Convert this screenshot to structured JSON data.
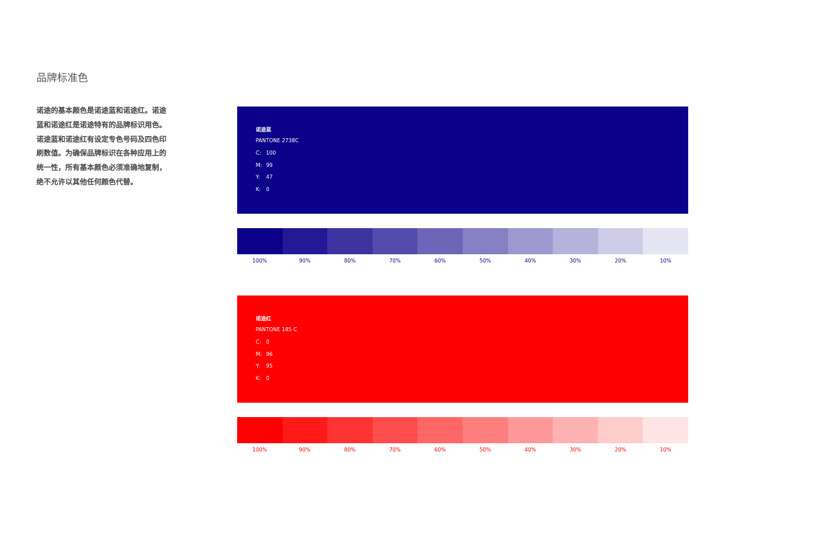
{
  "header": {
    "title": "品牌标准色"
  },
  "intro": {
    "lines": [
      "诺途的基本颜色是诺途蓝和诺途红。诺途",
      "蓝和诺途红是诺途特有的品牌标识用色。",
      "诺途蓝和诺途红有设定专色号码及四色印",
      "刷数值。为确保品牌标识在各种应用上的",
      "统一性，所有基本颜色必须准确地复制，",
      "绝不允许以其他任何颜色代替。"
    ]
  },
  "colors": [
    {
      "name": "诺途蓝",
      "pantone": "PANTONE 2738C",
      "color": "#0b0089",
      "cmyk": [
        {
          "label": "C:",
          "value": 100
        },
        {
          "label": "M:",
          "value": 99
        },
        {
          "label": "Y:",
          "value": 47
        },
        {
          "label": "K:",
          "value": 0
        }
      ],
      "tints": [
        {
          "value": 100,
          "label": "100%"
        },
        {
          "value": 90,
          "label": "90%"
        },
        {
          "value": 80,
          "label": "80%"
        },
        {
          "value": 70,
          "label": "70%"
        },
        {
          "value": 60,
          "label": "60%"
        },
        {
          "value": 50,
          "label": "50%"
        },
        {
          "value": 40,
          "label": "40%"
        },
        {
          "value": 30,
          "label": "30%"
        },
        {
          "value": 20,
          "label": "20%"
        },
        {
          "value": 10,
          "label": "10%"
        }
      ]
    },
    {
      "name": "诺途红",
      "pantone": "PANTONE 185 C",
      "color": "#ff0000",
      "cmyk": [
        {
          "label": "C:",
          "value": 0
        },
        {
          "label": "M:",
          "value": 96
        },
        {
          "label": "Y:",
          "value": 95
        },
        {
          "label": "K:",
          "value": 0
        }
      ],
      "tints": [
        {
          "value": 100,
          "label": "100%"
        },
        {
          "value": 90,
          "label": "90%"
        },
        {
          "value": 80,
          "label": "80%"
        },
        {
          "value": 70,
          "label": "70%"
        },
        {
          "value": 60,
          "label": "60%"
        },
        {
          "value": 50,
          "label": "50%"
        },
        {
          "value": 40,
          "label": "40%"
        },
        {
          "value": 30,
          "label": "30%"
        },
        {
          "value": 20,
          "label": "20%"
        },
        {
          "value": 10,
          "label": "10%"
        }
      ]
    }
  ]
}
